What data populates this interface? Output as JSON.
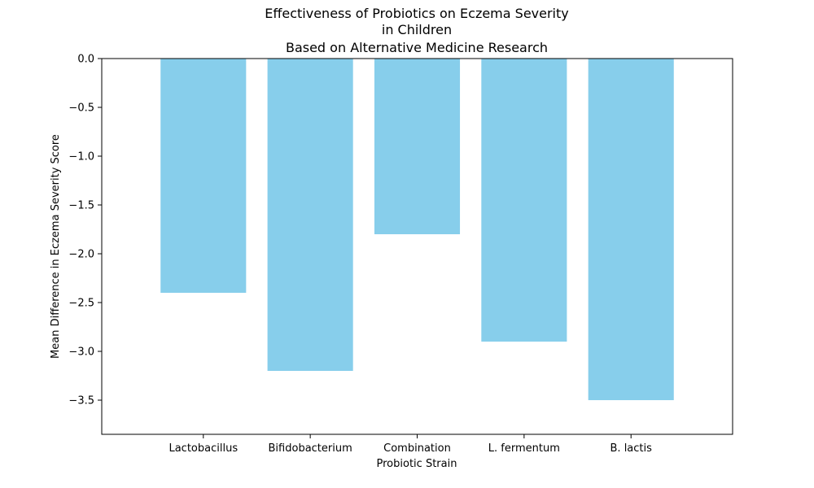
{
  "chart_data": {
    "type": "bar",
    "title_lines": [
      "Effectiveness of Probiotics on Eczema Severity",
      "in Children",
      "Based on Alternative Medicine Research"
    ],
    "xlabel": "Probiotic Strain",
    "ylabel": "Mean Difference in Eczema Severity Score",
    "categories": [
      "Lactobacillus",
      "Bifidobacterium",
      "Combination",
      "L. fermentum",
      "B. lactis"
    ],
    "values": [
      -2.4,
      -3.2,
      -1.8,
      -2.9,
      -3.5
    ],
    "ylim": [
      -3.85,
      0.0
    ],
    "yticks": [
      0.0,
      -0.5,
      -1.0,
      -1.5,
      -2.0,
      -2.5,
      -3.0,
      -3.5
    ],
    "ytick_labels": [
      "0.0",
      "−0.5",
      "−1.0",
      "−1.5",
      "−2.0",
      "−2.5",
      "−3.0",
      "−3.5"
    ],
    "bar_color": "#87ceeb",
    "grid": false,
    "legend": "none"
  }
}
